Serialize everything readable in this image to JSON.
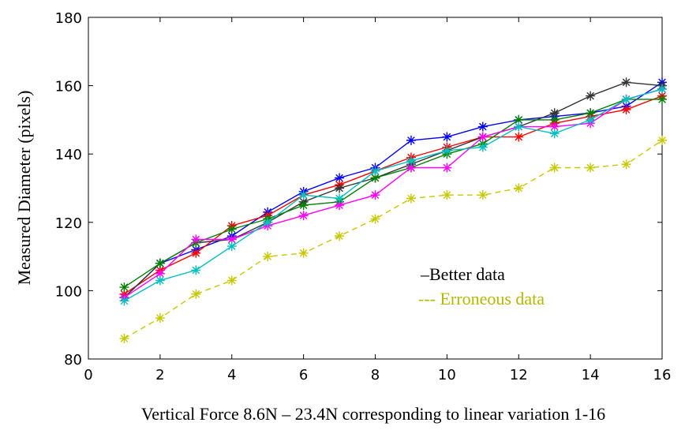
{
  "chart_data": {
    "type": "line",
    "xlabel": "Vertical Force 8.6N – 23.4N corresponding to linear variation 1-16",
    "ylabel": "Measured Diameter (pixels)",
    "xlim": [
      0,
      16
    ],
    "ylim": [
      80,
      180
    ],
    "xticks": [
      0,
      2,
      4,
      6,
      8,
      10,
      12,
      14,
      16
    ],
    "yticks": [
      80,
      100,
      120,
      140,
      160,
      180
    ],
    "grid": false,
    "marker": "star",
    "x": [
      1,
      2,
      3,
      4,
      5,
      6,
      7,
      8,
      9,
      10,
      11,
      12,
      13,
      14,
      15,
      16
    ],
    "legend": {
      "placement": "lower-right",
      "entries": [
        {
          "label": "–Better data",
          "color": "#000000"
        },
        {
          "label": "--- Erroneous data",
          "color": "#b5b800"
        }
      ]
    },
    "series": [
      {
        "color": "#0000ff",
        "style": "solid",
        "values": [
          98,
          108,
          112,
          116,
          123,
          129,
          133,
          136,
          144,
          145,
          148,
          150,
          151,
          152,
          154,
          161
        ]
      },
      {
        "color": "#ff0000",
        "style": "solid",
        "values": [
          99,
          106,
          111,
          119,
          122,
          128,
          131,
          135,
          139,
          142,
          145,
          145,
          149,
          151,
          153,
          157
        ]
      },
      {
        "color": "#333333",
        "style": "solid",
        "values": [
          98,
          108,
          114,
          115,
          120,
          126,
          130,
          133,
          137,
          141,
          145,
          148,
          152,
          157,
          161,
          160
        ]
      },
      {
        "color": "#008000",
        "style": "solid",
        "values": [
          101,
          108,
          114,
          118,
          121,
          125,
          126,
          133,
          136,
          140,
          143,
          150,
          150,
          152,
          156,
          156
        ]
      },
      {
        "color": "#ff00ff",
        "style": "solid",
        "values": [
          98,
          105,
          115,
          115,
          119,
          122,
          125,
          128,
          136,
          136,
          145,
          148,
          148,
          149,
          156,
          159
        ]
      },
      {
        "color": "#00c0c0",
        "style": "solid",
        "values": [
          97,
          103,
          106,
          113,
          120,
          128,
          127,
          135,
          138,
          141,
          142,
          148,
          146,
          150,
          156,
          159
        ]
      },
      {
        "color": "#c8c800",
        "style": "dashed",
        "values": [
          86,
          92,
          99,
          103,
          110,
          111,
          116,
          121,
          127,
          128,
          128,
          130,
          136,
          136,
          137,
          144
        ]
      }
    ]
  }
}
